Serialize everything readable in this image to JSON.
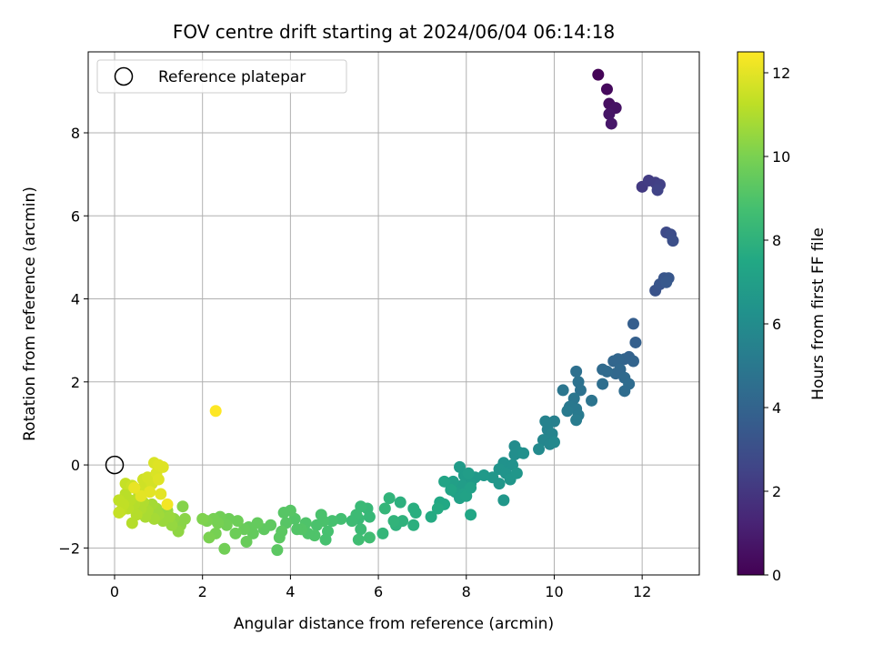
{
  "chart_data": {
    "type": "scatter",
    "title": "FOV centre drift starting at 2024/06/04 06:14:18",
    "xlabel": "Angular distance from reference (arcmin)",
    "ylabel": "Rotation from reference (arcmin)",
    "xlim": [
      -0.6,
      13.3
    ],
    "ylim": [
      -2.65,
      9.95
    ],
    "xticks": [
      0,
      2,
      4,
      6,
      8,
      10,
      12
    ],
    "yticks": [
      -2,
      0,
      2,
      4,
      6,
      8
    ],
    "grid": true,
    "legend": {
      "location": "top-left",
      "entries": [
        "Reference platepar"
      ]
    },
    "reference_point": {
      "x": 0,
      "y": 0,
      "label": "Reference platepar"
    },
    "colorbar": {
      "label": "Hours from first FF file",
      "colormap": "viridis",
      "range": [
        0,
        12.5
      ],
      "ticks": [
        0,
        2,
        4,
        6,
        8,
        10,
        12
      ]
    },
    "series": [
      {
        "color_by": "hours",
        "points": [
          [
            11.0,
            9.4,
            0.1
          ],
          [
            11.2,
            9.05,
            0.3
          ],
          [
            11.25,
            8.7,
            0.5
          ],
          [
            11.4,
            8.6,
            0.6
          ],
          [
            11.25,
            8.45,
            0.7
          ],
          [
            11.3,
            8.22,
            0.8
          ],
          [
            12.0,
            6.7,
            2.1
          ],
          [
            12.15,
            6.85,
            2.2
          ],
          [
            12.3,
            6.8,
            2.3
          ],
          [
            12.4,
            6.75,
            2.4
          ],
          [
            12.35,
            6.62,
            2.5
          ],
          [
            12.55,
            5.6,
            2.8
          ],
          [
            12.65,
            5.55,
            2.9
          ],
          [
            12.7,
            5.4,
            3.0
          ],
          [
            12.3,
            4.2,
            3.2
          ],
          [
            12.4,
            4.35,
            3.3
          ],
          [
            12.5,
            4.5,
            3.35
          ],
          [
            12.6,
            4.5,
            3.4
          ],
          [
            12.55,
            4.4,
            3.45
          ],
          [
            11.8,
            3.4,
            3.7
          ],
          [
            11.85,
            2.95,
            3.8
          ],
          [
            11.7,
            2.6,
            3.9
          ],
          [
            11.8,
            2.5,
            4.0
          ],
          [
            11.6,
            2.55,
            4.0
          ],
          [
            11.45,
            2.55,
            4.1
          ],
          [
            11.35,
            2.5,
            4.1
          ],
          [
            11.5,
            2.3,
            4.2
          ],
          [
            11.4,
            2.2,
            4.2
          ],
          [
            11.1,
            2.3,
            4.3
          ],
          [
            11.2,
            2.25,
            4.3
          ],
          [
            11.6,
            2.1,
            4.3
          ],
          [
            11.7,
            1.95,
            4.4
          ],
          [
            11.6,
            1.78,
            4.4
          ],
          [
            11.1,
            1.95,
            4.5
          ],
          [
            10.5,
            2.25,
            4.6
          ],
          [
            10.55,
            2.0,
            4.7
          ],
          [
            10.6,
            1.8,
            4.7
          ],
          [
            10.85,
            1.55,
            4.8
          ],
          [
            10.45,
            1.6,
            4.9
          ],
          [
            10.35,
            1.4,
            5.0
          ],
          [
            10.5,
            1.35,
            5.0
          ],
          [
            10.55,
            1.2,
            5.1
          ],
          [
            10.3,
            1.3,
            5.1
          ],
          [
            10.5,
            1.08,
            5.2
          ],
          [
            10.2,
            1.8,
            4.9
          ],
          [
            10.0,
            1.05,
            5.4
          ],
          [
            9.8,
            1.05,
            5.5
          ],
          [
            9.85,
            0.85,
            5.5
          ],
          [
            9.95,
            0.75,
            5.6
          ],
          [
            9.75,
            0.6,
            5.7
          ],
          [
            9.9,
            0.5,
            5.7
          ],
          [
            10.0,
            0.55,
            5.8
          ],
          [
            9.65,
            0.38,
            5.9
          ],
          [
            9.1,
            0.45,
            6.0
          ],
          [
            9.2,
            0.3,
            6.1
          ],
          [
            9.1,
            0.25,
            6.1
          ],
          [
            9.3,
            0.28,
            6.2
          ],
          [
            8.85,
            0.05,
            6.3
          ],
          [
            9.05,
            0.0,
            6.3
          ],
          [
            8.75,
            -0.1,
            6.4
          ],
          [
            8.9,
            -0.2,
            6.4
          ],
          [
            9.0,
            -0.35,
            6.5
          ],
          [
            9.15,
            -0.2,
            6.5
          ],
          [
            8.6,
            -0.3,
            6.6
          ],
          [
            8.75,
            -0.45,
            6.6
          ],
          [
            8.4,
            -0.25,
            6.7
          ],
          [
            8.2,
            -0.3,
            6.7
          ],
          [
            8.1,
            -0.45,
            6.8
          ],
          [
            7.85,
            -0.05,
            6.8
          ],
          [
            7.95,
            -0.25,
            6.8
          ],
          [
            8.05,
            -0.2,
            6.9
          ],
          [
            7.9,
            -0.5,
            6.9
          ],
          [
            7.7,
            -0.4,
            7.0
          ],
          [
            7.75,
            -0.65,
            7.0
          ],
          [
            7.95,
            -0.7,
            7.1
          ],
          [
            7.85,
            -0.8,
            7.1
          ],
          [
            8.0,
            -0.75,
            7.2
          ],
          [
            8.1,
            -0.55,
            7.1
          ],
          [
            7.5,
            -0.4,
            7.3
          ],
          [
            7.65,
            -0.6,
            7.3
          ],
          [
            8.1,
            -1.2,
            7.4
          ],
          [
            8.85,
            -0.85,
            6.6
          ],
          [
            7.4,
            -0.9,
            7.5
          ],
          [
            7.5,
            -0.95,
            7.5
          ],
          [
            7.35,
            -1.05,
            7.6
          ],
          [
            7.2,
            -1.25,
            7.6
          ],
          [
            6.8,
            -1.05,
            7.8
          ],
          [
            6.85,
            -1.15,
            7.8
          ],
          [
            6.8,
            -1.45,
            7.9
          ],
          [
            6.5,
            -0.9,
            7.9
          ],
          [
            6.55,
            -1.35,
            8.0
          ],
          [
            6.4,
            -1.45,
            8.0
          ],
          [
            6.35,
            -1.35,
            8.1
          ],
          [
            6.25,
            -0.8,
            8.1
          ],
          [
            6.15,
            -1.05,
            8.2
          ],
          [
            6.1,
            -1.65,
            8.2
          ],
          [
            5.75,
            -1.05,
            8.3
          ],
          [
            5.8,
            -1.25,
            8.3
          ],
          [
            5.6,
            -1.0,
            8.4
          ],
          [
            5.55,
            -1.3,
            8.4
          ],
          [
            5.5,
            -1.2,
            8.5
          ],
          [
            5.4,
            -1.35,
            8.5
          ],
          [
            5.6,
            -1.55,
            8.5
          ],
          [
            5.55,
            -1.8,
            8.6
          ],
          [
            5.8,
            -1.75,
            8.6
          ],
          [
            5.15,
            -1.3,
            8.7
          ],
          [
            4.95,
            -1.35,
            8.8
          ],
          [
            4.85,
            -1.6,
            8.8
          ],
          [
            4.8,
            -1.8,
            8.8
          ],
          [
            4.7,
            -1.2,
            8.9
          ],
          [
            4.75,
            -1.35,
            8.9
          ],
          [
            4.6,
            -1.45,
            8.9
          ],
          [
            4.55,
            -1.7,
            9.0
          ],
          [
            4.4,
            -1.65,
            9.0
          ],
          [
            4.35,
            -1.4,
            9.0
          ],
          [
            4.25,
            -1.55,
            9.1
          ],
          [
            4.1,
            -1.3,
            9.1
          ],
          [
            4.15,
            -1.55,
            9.1
          ],
          [
            4.0,
            -1.1,
            9.2
          ],
          [
            3.85,
            -1.15,
            9.2
          ],
          [
            3.9,
            -1.4,
            9.2
          ],
          [
            3.8,
            -1.6,
            9.3
          ],
          [
            3.75,
            -1.75,
            9.3
          ],
          [
            3.7,
            -2.05,
            9.3
          ],
          [
            3.55,
            -1.45,
            9.4
          ],
          [
            3.4,
            -1.55,
            9.4
          ],
          [
            3.25,
            -1.4,
            9.5
          ],
          [
            3.15,
            -1.65,
            9.5
          ],
          [
            3.05,
            -1.5,
            9.5
          ],
          [
            3.0,
            -1.85,
            9.6
          ],
          [
            2.95,
            -1.55,
            9.6
          ],
          [
            2.8,
            -1.35,
            9.7
          ],
          [
            2.75,
            -1.65,
            9.7
          ],
          [
            2.6,
            -1.3,
            9.7
          ],
          [
            2.55,
            -1.45,
            9.8
          ],
          [
            2.5,
            -2.02,
            9.8
          ],
          [
            2.4,
            -1.25,
            9.8
          ],
          [
            2.35,
            -1.4,
            9.9
          ],
          [
            2.3,
            -1.65,
            9.9
          ],
          [
            2.25,
            -1.3,
            9.9
          ],
          [
            2.15,
            -1.75,
            10.0
          ],
          [
            2.1,
            -1.35,
            10.0
          ],
          [
            2.0,
            -1.3,
            10.1
          ],
          [
            1.55,
            -1.0,
            10.2
          ],
          [
            1.6,
            -1.3,
            10.3
          ],
          [
            1.5,
            -1.45,
            10.3
          ],
          [
            1.45,
            -1.6,
            10.4
          ],
          [
            1.35,
            -1.3,
            10.4
          ],
          [
            1.3,
            -1.45,
            10.5
          ],
          [
            1.2,
            -1.1,
            10.5
          ],
          [
            1.25,
            -1.25,
            10.6
          ],
          [
            1.1,
            -1.35,
            10.6
          ],
          [
            1.0,
            -1.2,
            10.7
          ],
          [
            0.95,
            -1.05,
            10.7
          ],
          [
            0.9,
            -1.3,
            10.8
          ],
          [
            0.85,
            -0.95,
            10.8
          ],
          [
            0.75,
            -1.1,
            10.9
          ],
          [
            0.7,
            -1.25,
            10.9
          ],
          [
            0.65,
            -0.9,
            11.0
          ],
          [
            0.6,
            -1.05,
            11.0
          ],
          [
            0.55,
            -0.75,
            11.0
          ],
          [
            0.5,
            -1.2,
            11.1
          ],
          [
            0.45,
            -0.95,
            11.1
          ],
          [
            0.4,
            -1.4,
            11.1
          ],
          [
            0.35,
            -0.85,
            11.2
          ],
          [
            0.3,
            -1.05,
            11.2
          ],
          [
            0.25,
            -0.7,
            11.2
          ],
          [
            0.2,
            -0.95,
            11.3
          ],
          [
            0.15,
            -1.1,
            11.3
          ],
          [
            0.1,
            -0.85,
            11.3
          ],
          [
            0.1,
            -1.15,
            11.4
          ],
          [
            0.25,
            -0.45,
            11.4
          ],
          [
            0.4,
            -0.5,
            11.5
          ],
          [
            0.55,
            -0.6,
            11.5
          ],
          [
            0.65,
            -0.35,
            11.6
          ],
          [
            0.7,
            -0.5,
            11.6
          ],
          [
            0.75,
            -0.3,
            11.7
          ],
          [
            0.85,
            -0.45,
            11.7
          ],
          [
            0.9,
            0.05,
            11.8
          ],
          [
            0.95,
            -0.2,
            11.8
          ],
          [
            1.0,
            0.0,
            11.9
          ],
          [
            1.1,
            -0.05,
            11.9
          ],
          [
            1.0,
            -0.35,
            11.9
          ],
          [
            1.05,
            -0.7,
            12.0
          ],
          [
            0.8,
            -0.65,
            12.0
          ],
          [
            0.6,
            -0.75,
            12.0
          ],
          [
            0.45,
            -0.55,
            12.1
          ],
          [
            1.2,
            -0.95,
            12.3
          ],
          [
            2.3,
            1.3,
            12.5
          ]
        ]
      }
    ]
  }
}
